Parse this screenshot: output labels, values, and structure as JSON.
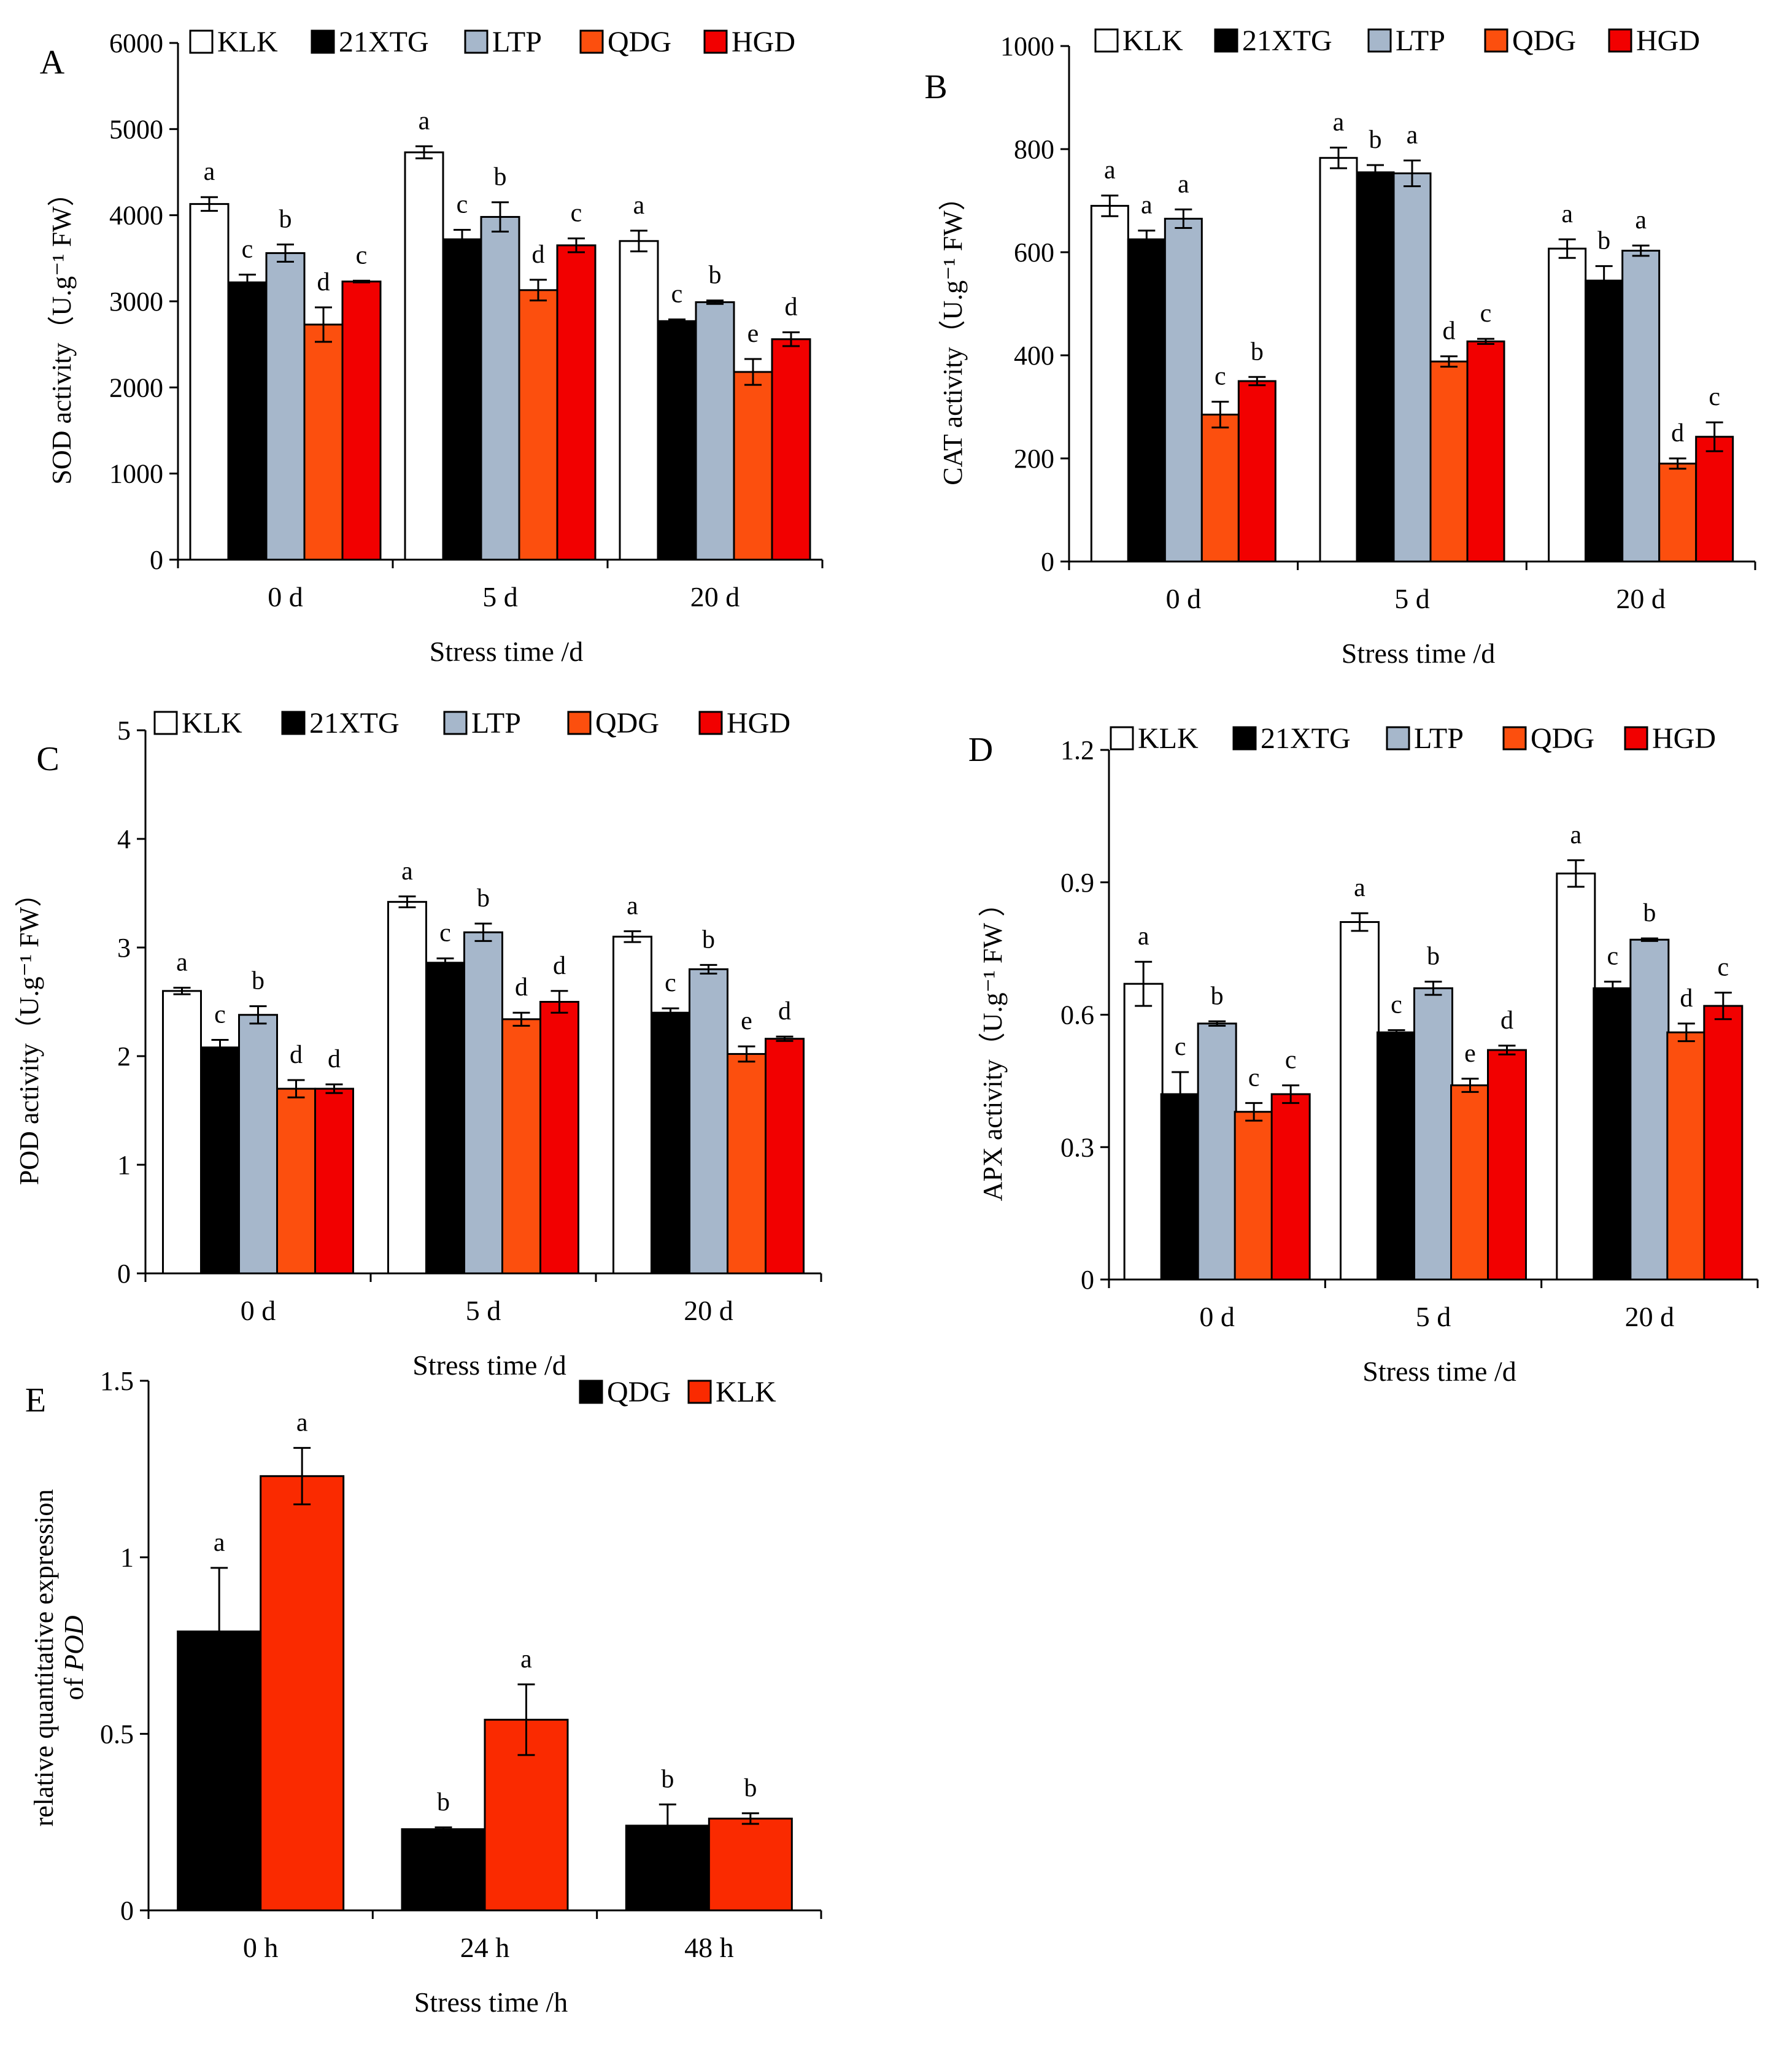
{
  "chart_data": [
    {
      "id": "A",
      "type": "bar",
      "panel_label": "A",
      "series_names": [
        "KLK",
        "21XTG",
        "LTP",
        "QDG",
        "HGD"
      ],
      "colors": [
        "#ffffff",
        "#000000",
        "#a6b7cb",
        "#fc4f0e",
        "#f20000"
      ],
      "categories": [
        "0 d",
        "5 d",
        "20 d"
      ],
      "values": [
        [
          4130,
          3220,
          3560,
          2730,
          3230
        ],
        [
          4730,
          3720,
          3980,
          3130,
          3650
        ],
        [
          3700,
          2770,
          2990,
          2180,
          2560
        ]
      ],
      "errors": [
        [
          80,
          90,
          100,
          200,
          10
        ],
        [
          70,
          110,
          170,
          120,
          80
        ],
        [
          120,
          20,
          20,
          150,
          80
        ]
      ],
      "letters": [
        [
          "a",
          "c",
          "b",
          "d",
          "c"
        ],
        [
          "a",
          "c",
          "b",
          "d",
          "c"
        ],
        [
          "a",
          "c",
          "b",
          "e",
          "d"
        ]
      ],
      "ylim": [
        0,
        6000
      ],
      "yticks": [
        "0",
        "1000",
        "2000",
        "3000",
        "4000",
        "5000",
        "6000"
      ],
      "ylabel": "SOD activity（U.g⁻¹ FW）",
      "xlabel": "Stress time /d"
    },
    {
      "id": "B",
      "type": "bar",
      "panel_label": "B",
      "series_names": [
        "KLK",
        "21XTG",
        "LTP",
        "QDG",
        "HGD"
      ],
      "colors": [
        "#ffffff",
        "#000000",
        "#a6b7cb",
        "#fc4f0e",
        "#f20000"
      ],
      "categories": [
        "0 d",
        "5 d",
        "20 d"
      ],
      "values": [
        [
          690,
          625,
          665,
          285,
          350
        ],
        [
          783,
          755,
          753,
          388,
          427
        ],
        [
          607,
          545,
          603,
          190,
          242
        ]
      ],
      "errors": [
        [
          20,
          17,
          18,
          25,
          8
        ],
        [
          20,
          14,
          25,
          10,
          5
        ],
        [
          18,
          28,
          10,
          10,
          28
        ]
      ],
      "letters": [
        [
          "a",
          "a",
          "a",
          "c",
          "b"
        ],
        [
          "a",
          "b",
          "a",
          "d",
          "c"
        ],
        [
          "a",
          "b",
          "a",
          "d",
          "c"
        ]
      ],
      "ylim": [
        0,
        1000
      ],
      "yticks": [
        "0",
        "200",
        "400",
        "600",
        "800",
        "1000"
      ],
      "ylabel": "CAT activity（U.g⁻¹ FW）",
      "xlabel": "Stress time /d"
    },
    {
      "id": "C",
      "type": "bar",
      "panel_label": "C",
      "series_names": [
        "KLK",
        "21XTG",
        "LTP",
        "QDG",
        "HGD"
      ],
      "colors": [
        "#ffffff",
        "#000000",
        "#a6b7cb",
        "#fc4f0e",
        "#f20000"
      ],
      "categories": [
        "0 d",
        "5 d",
        "20 d"
      ],
      "values": [
        [
          2.6,
          2.08,
          2.38,
          1.7,
          1.7
        ],
        [
          3.42,
          2.86,
          3.14,
          2.34,
          2.5
        ],
        [
          3.1,
          2.4,
          2.8,
          2.02,
          2.16
        ]
      ],
      "errors": [
        [
          0.03,
          0.07,
          0.08,
          0.08,
          0.04
        ],
        [
          0.05,
          0.04,
          0.08,
          0.06,
          0.1
        ],
        [
          0.05,
          0.04,
          0.04,
          0.07,
          0.02
        ]
      ],
      "letters": [
        [
          "a",
          "c",
          "b",
          "d",
          "d"
        ],
        [
          "a",
          "c",
          "b",
          "d",
          "d"
        ],
        [
          "a",
          "c",
          "b",
          "e",
          "d"
        ]
      ],
      "ylim": [
        0,
        5
      ],
      "yticks": [
        "0",
        "1",
        "2",
        "3",
        "4",
        "5"
      ],
      "ylabel": "POD activity（U.g⁻¹ FW）",
      "xlabel": "Stress time /d"
    },
    {
      "id": "D",
      "type": "bar",
      "panel_label": "D",
      "series_names": [
        "KLK",
        "21XTG",
        "LTP",
        "QDG",
        "HGD"
      ],
      "colors": [
        "#ffffff",
        "#000000",
        "#a6b7cb",
        "#fc4f0e",
        "#f20000"
      ],
      "categories": [
        "0 d",
        "5 d",
        "20 d"
      ],
      "values": [
        [
          0.67,
          0.42,
          0.58,
          0.38,
          0.42
        ],
        [
          0.81,
          0.56,
          0.66,
          0.44,
          0.52
        ],
        [
          0.92,
          0.66,
          0.77,
          0.56,
          0.62
        ]
      ],
      "errors": [
        [
          0.05,
          0.05,
          0.005,
          0.02,
          0.02
        ],
        [
          0.02,
          0.005,
          0.015,
          0.015,
          0.01
        ],
        [
          0.03,
          0.015,
          0.003,
          0.02,
          0.03
        ]
      ],
      "letters": [
        [
          "a",
          "c",
          "b",
          "c",
          "c"
        ],
        [
          "a",
          "c",
          "b",
          "e",
          "d"
        ],
        [
          "a",
          "c",
          "b",
          "d",
          "c"
        ]
      ],
      "ylim": [
        0,
        1.2
      ],
      "yticks": [
        "0",
        "0.3",
        "0.6",
        "0.9",
        "1.2"
      ],
      "ylabel": "APX activity（U.g⁻¹ FW ）",
      "xlabel": "Stress time /d"
    },
    {
      "id": "E",
      "type": "bar",
      "panel_label": "E",
      "series_names": [
        "QDG",
        "KLK"
      ],
      "colors": [
        "#000000",
        "#fa2a00"
      ],
      "categories": [
        "0 h",
        "24 h",
        "48 h"
      ],
      "values": [
        [
          0.79,
          1.23
        ],
        [
          0.23,
          0.54
        ],
        [
          0.24,
          0.26
        ]
      ],
      "errors": [
        [
          0.18,
          0.08
        ],
        [
          0.005,
          0.1
        ],
        [
          0.06,
          0.015
        ]
      ],
      "letters": [
        [
          "a",
          "a"
        ],
        [
          "b",
          "a"
        ],
        [
          "b",
          "b"
        ]
      ],
      "ylim": [
        0,
        1.5
      ],
      "yticks": [
        "0",
        "0.5",
        "1",
        "1.5"
      ],
      "ylabel": "relative quantitative expression",
      "ylabel2_prefix": "of ",
      "ylabel2_gene": "POD",
      "xlabel": "Stress time /h"
    }
  ]
}
